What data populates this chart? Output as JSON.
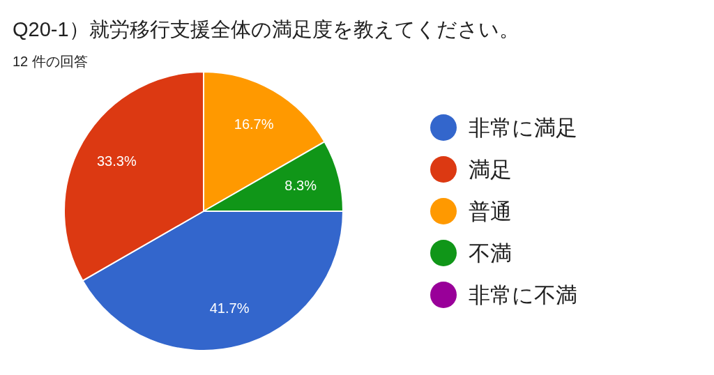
{
  "chart_data": {
    "type": "pie",
    "title": "Q20-1）就労移行支援全体の満足度を教えてください。",
    "subtitle": "12 件の回答",
    "categories": [
      "非常に満足",
      "満足",
      "普通",
      "不満",
      "非常に不満"
    ],
    "values": [
      41.7,
      33.3,
      16.7,
      8.3,
      0
    ],
    "colors": [
      "#3366cc",
      "#dc3912",
      "#ff9900",
      "#109618",
      "#990099"
    ],
    "value_labels": [
      "41.7%",
      "33.3%",
      "16.7%",
      "8.3%",
      null
    ],
    "legend": "right"
  }
}
